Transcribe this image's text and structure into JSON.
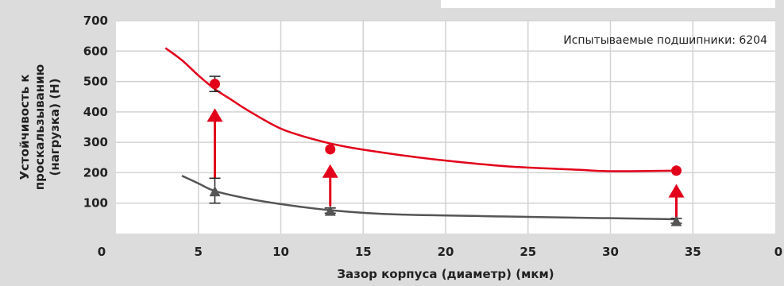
{
  "chart_data": {
    "type": "line",
    "annotation": "Испытываемые подшипники: 6204",
    "xlabel": "Зазор корпуса (диаметр) (мкм)",
    "ylabel": [
      "Устойчивость к",
      "проскальзыванию",
      "(нагрузка) (Н)"
    ],
    "x_ticks": [
      "0",
      "5",
      "10",
      "15",
      "20",
      "25",
      "30",
      "35",
      "0"
    ],
    "y_ticks": [
      "100",
      "200",
      "300",
      "400",
      "500",
      "600",
      "700"
    ],
    "xlim": [
      0,
      40
    ],
    "ylim": [
      0,
      700
    ],
    "grid": true,
    "series": [
      {
        "color": "#e2001a",
        "curve": [
          [
            3,
            610
          ],
          [
            4,
            570
          ],
          [
            5,
            520
          ],
          [
            6,
            475
          ],
          [
            7,
            440
          ],
          [
            8,
            405
          ],
          [
            10,
            345
          ],
          [
            12,
            310
          ],
          [
            14,
            285
          ],
          [
            17,
            260
          ],
          [
            20,
            240
          ],
          [
            24,
            220
          ],
          [
            28,
            210
          ],
          [
            30,
            205
          ],
          [
            34,
            207
          ]
        ],
        "points": [
          {
            "x": 6,
            "y": 492,
            "err_low": 467,
            "err_high": 517
          },
          {
            "x": 13,
            "y": 277
          },
          {
            "x": 34,
            "y": 207
          }
        ],
        "marker": "circle"
      },
      {
        "color": "#555555",
        "curve": [
          [
            4,
            190
          ],
          [
            5,
            165
          ],
          [
            6,
            140
          ],
          [
            8,
            115
          ],
          [
            10,
            97
          ],
          [
            13,
            77
          ],
          [
            17,
            63
          ],
          [
            25,
            55
          ],
          [
            34,
            47
          ]
        ],
        "points": [
          {
            "x": 6,
            "y": 138,
            "err_low": 100,
            "err_high": 182
          },
          {
            "x": 13,
            "y": 74,
            "err_low": 67,
            "err_high": 84
          },
          {
            "x": 34,
            "y": 40,
            "err_low": 34,
            "err_high": 50
          }
        ],
        "marker": "triangle"
      }
    ],
    "arrows": [
      {
        "x": 6,
        "from": 183,
        "to": 412
      },
      {
        "x": 13,
        "from": 90,
        "to": 228
      },
      {
        "x": 34,
        "from": 53,
        "to": 163
      }
    ],
    "arrow_color": "#e2001a"
  }
}
